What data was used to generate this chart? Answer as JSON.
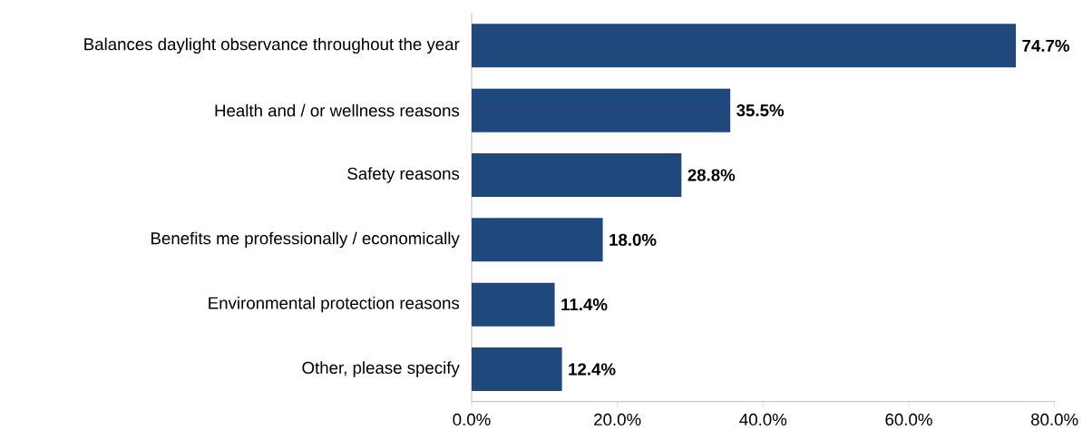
{
  "chart_data": {
    "type": "bar",
    "orientation": "horizontal",
    "categories": [
      "Balances daylight observance throughout the year",
      "Health and / or wellness reasons",
      "Safety reasons",
      "Benefits me professionally / economically",
      "Environmental protection reasons",
      "Other, please specify"
    ],
    "values": [
      74.7,
      35.5,
      28.8,
      18.0,
      11.4,
      12.4
    ],
    "value_labels": [
      "74.7%",
      "35.5%",
      "28.8%",
      "18.0%",
      "11.4%",
      "12.4%"
    ],
    "color": "#1f497d",
    "xlim": [
      0,
      80
    ],
    "xticks": [
      {
        "value": 0,
        "label": "0.0%"
      },
      {
        "value": 20,
        "label": "20.0%"
      },
      {
        "value": 40,
        "label": "40.0%"
      },
      {
        "value": 60,
        "label": "60.0%"
      },
      {
        "value": 80,
        "label": "80.0%"
      }
    ],
    "grid": false
  }
}
